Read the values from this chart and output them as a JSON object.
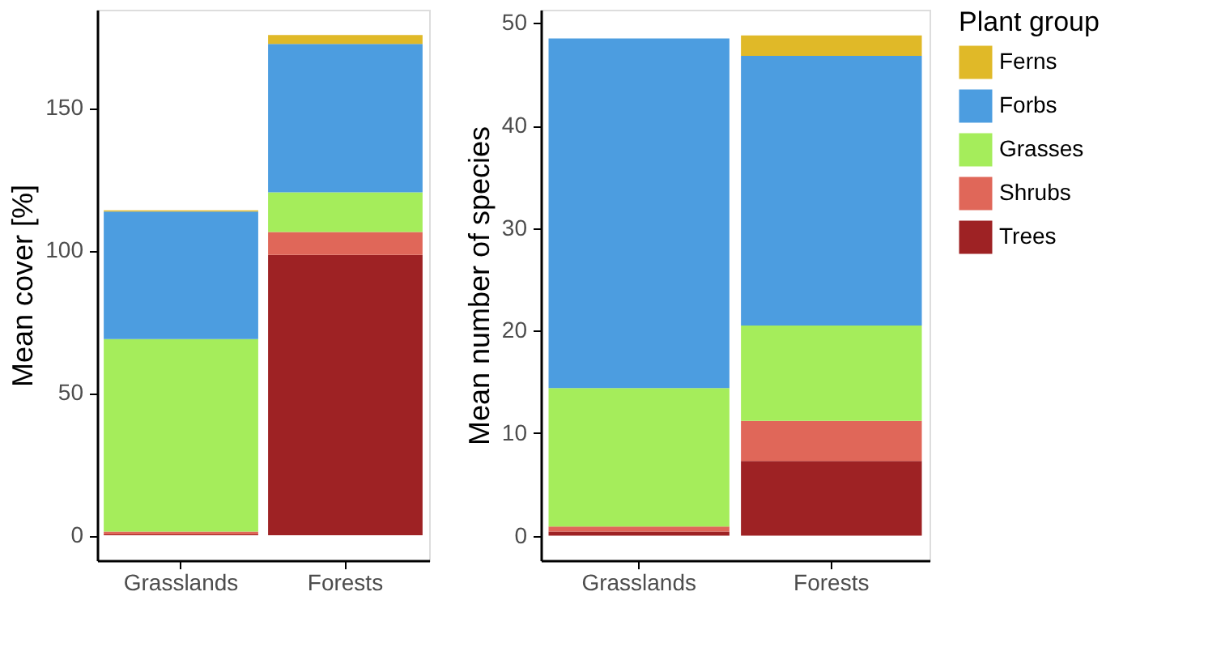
{
  "chart_data": [
    {
      "type": "bar",
      "stacked": true,
      "ylabel": "Mean cover [%]",
      "categories": [
        "Grasslands",
        "Forests"
      ],
      "ylim": [
        -8.8,
        184.4
      ],
      "yticks": [
        0,
        50,
        100,
        150
      ],
      "grid": false,
      "series": [
        {
          "color": "#9e2224",
          "values": [
            0.3,
            98.4
          ]
        },
        {
          "color": "#e06759",
          "values": [
            1.0,
            8.0
          ]
        },
        {
          "color": "#a5ed5b",
          "values": [
            67.5,
            13.9
          ]
        },
        {
          "color": "#4c9de0",
          "values": [
            44.8,
            52.1
          ]
        },
        {
          "color": "#e0b928",
          "values": [
            0.4,
            3.1
          ]
        }
      ]
    },
    {
      "type": "bar",
      "stacked": true,
      "ylabel": "Mean number of species",
      "categories": [
        "Grasslands",
        "Forests"
      ],
      "ylim": [
        -2.4,
        51.3
      ],
      "yticks": [
        0,
        10,
        20,
        30,
        40,
        50
      ],
      "grid": false,
      "legend": "right",
      "legend_title": "Plant group",
      "series": [
        {
          "name": "Trees",
          "color": "#9e2224",
          "values": [
            0.4,
            7.3
          ]
        },
        {
          "name": "Shrubs",
          "color": "#e06759",
          "values": [
            0.5,
            3.9
          ]
        },
        {
          "name": "Grasses",
          "color": "#a5ed5b",
          "values": [
            13.5,
            9.3
          ]
        },
        {
          "name": "Forbs",
          "color": "#4c9de0",
          "values": [
            34.1,
            26.3
          ]
        },
        {
          "name": "Ferns",
          "color": "#e0b928",
          "values": [
            null,
            2.0
          ]
        }
      ]
    }
  ]
}
